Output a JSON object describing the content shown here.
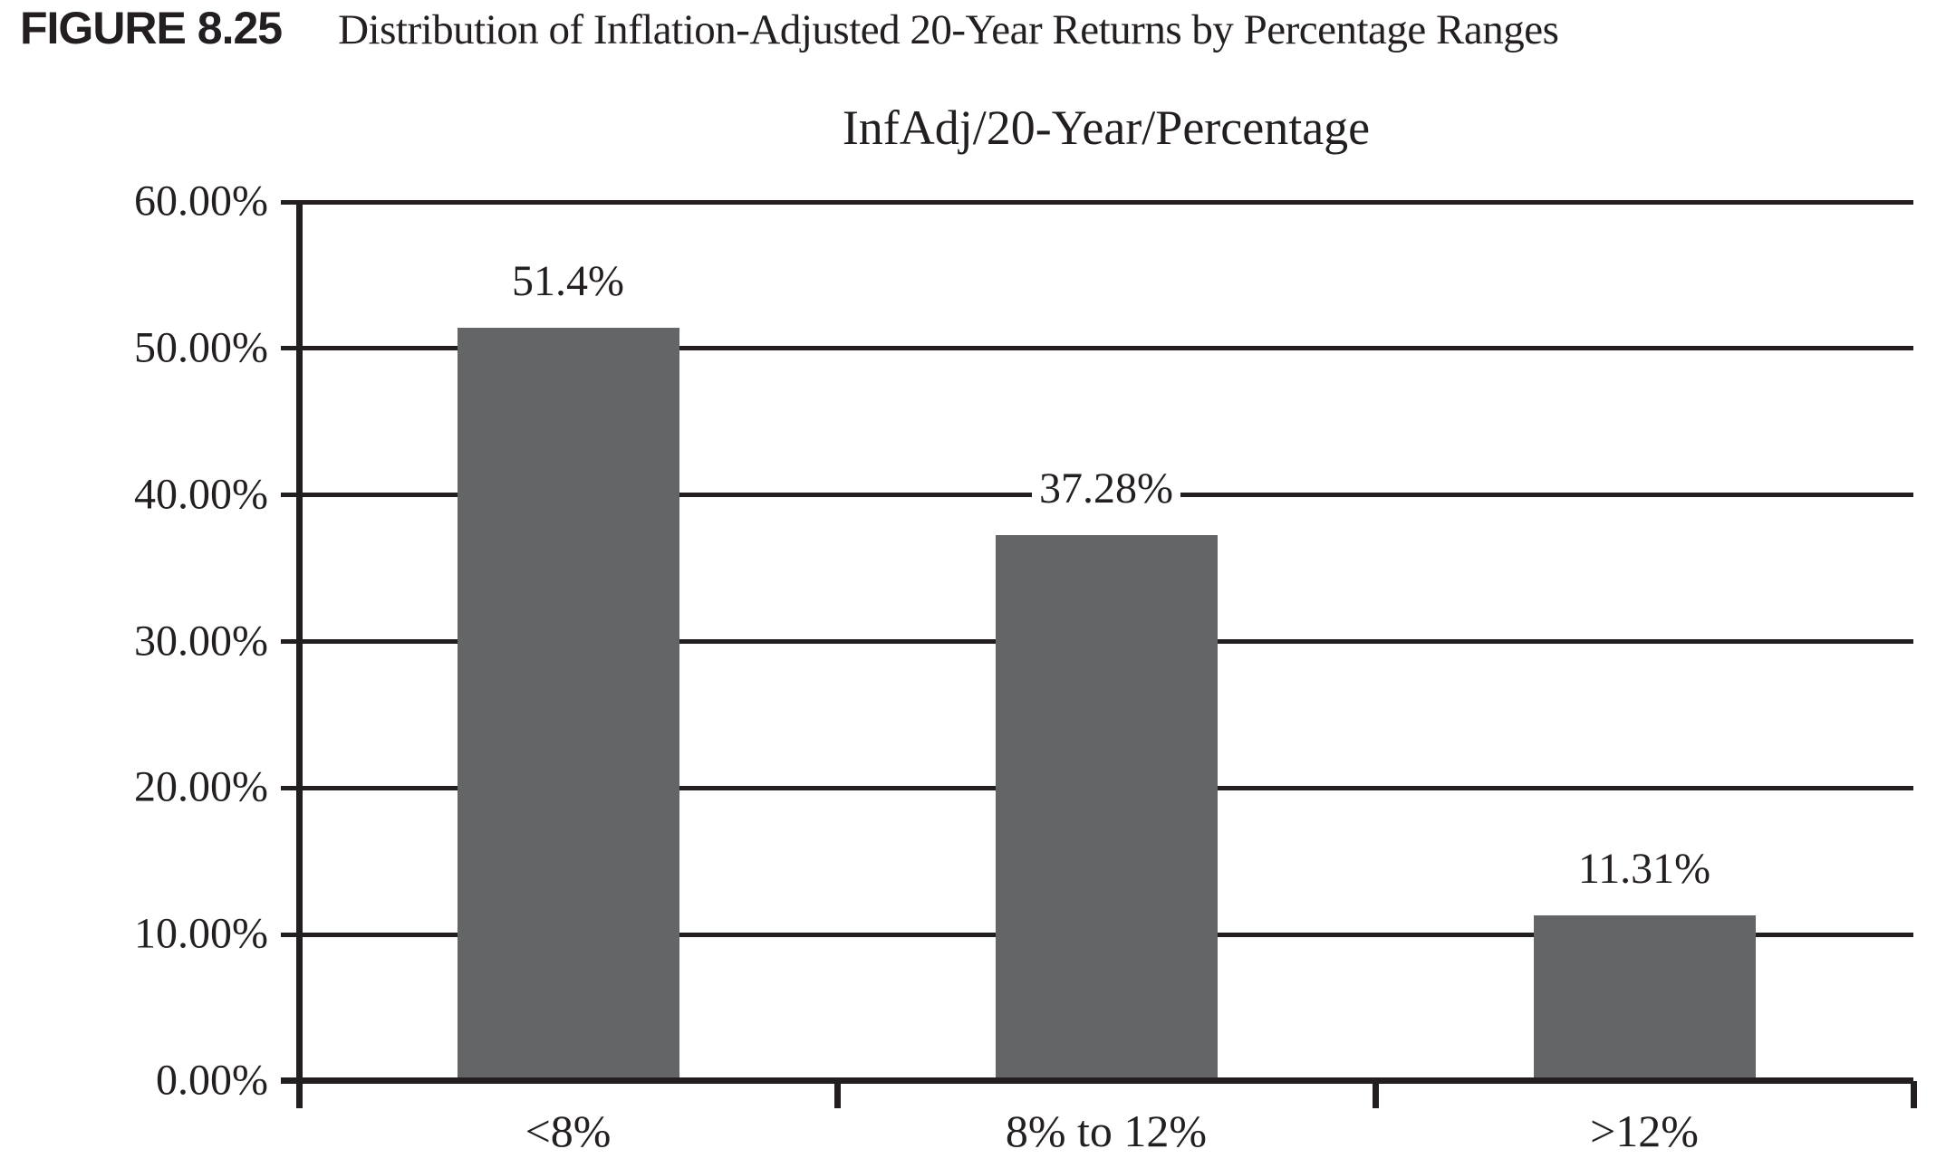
{
  "figure": {
    "label": "FIGURE 8.25",
    "caption": "Distribution of Inflation-Adjusted 20-Year Returns by Percentage Ranges"
  },
  "chart_data": {
    "type": "bar",
    "title": "InfAdj/20-Year/Percentage",
    "categories": [
      "<8%",
      "8% to 12%",
      ">12%"
    ],
    "values": [
      51.4,
      37.28,
      11.31
    ],
    "value_labels": [
      "51.4%",
      "37.28%",
      "11.31%"
    ],
    "xlabel": "",
    "ylabel": "",
    "ylim": [
      0,
      60
    ],
    "ytick_interval": 10,
    "ytick_labels": [
      "0.00%",
      "10.00%",
      "20.00%",
      "30.00%",
      "40.00%",
      "50.00%",
      "60.00%"
    ],
    "grid": true,
    "legend": false,
    "bar_color": "#636567",
    "line_color": "#231f20",
    "background_color": "#ffffff"
  }
}
